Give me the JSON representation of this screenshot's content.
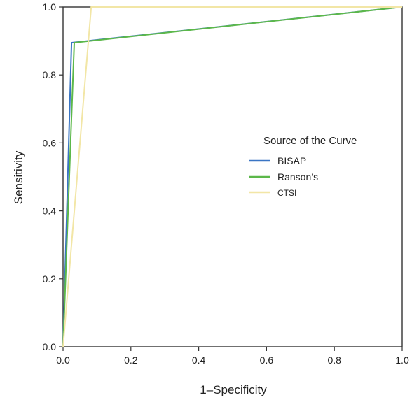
{
  "chart_data": {
    "type": "line",
    "title": "",
    "xlabel": "1–Specificity",
    "ylabel": "Sensitivity",
    "xlim": [
      0.0,
      1.0
    ],
    "ylim": [
      0.0,
      1.0
    ],
    "xticks": [
      "0.0",
      "0.2",
      "0.4",
      "0.6",
      "0.8",
      "1.0"
    ],
    "yticks": [
      "0.0",
      "0.2",
      "0.4",
      "0.6",
      "0.8",
      "1.0"
    ],
    "grid": false,
    "legend": {
      "title": "Source of the Curve",
      "placement": "center-right"
    },
    "series": [
      {
        "name": "BISAP",
        "color": "#3a75c4",
        "points": [
          [
            0.0,
            0.0
          ],
          [
            0.025,
            0.895
          ],
          [
            1.0,
            1.0
          ]
        ]
      },
      {
        "name": "Ranson’s",
        "color": "#5cb84a",
        "points": [
          [
            0.0,
            0.0
          ],
          [
            0.033,
            0.895
          ],
          [
            1.0,
            1.0
          ]
        ]
      },
      {
        "name": "CTSI",
        "color": "#f2e6a6",
        "points": [
          [
            0.0,
            0.0
          ],
          [
            0.083,
            1.0
          ],
          [
            1.0,
            1.0
          ]
        ]
      }
    ]
  }
}
